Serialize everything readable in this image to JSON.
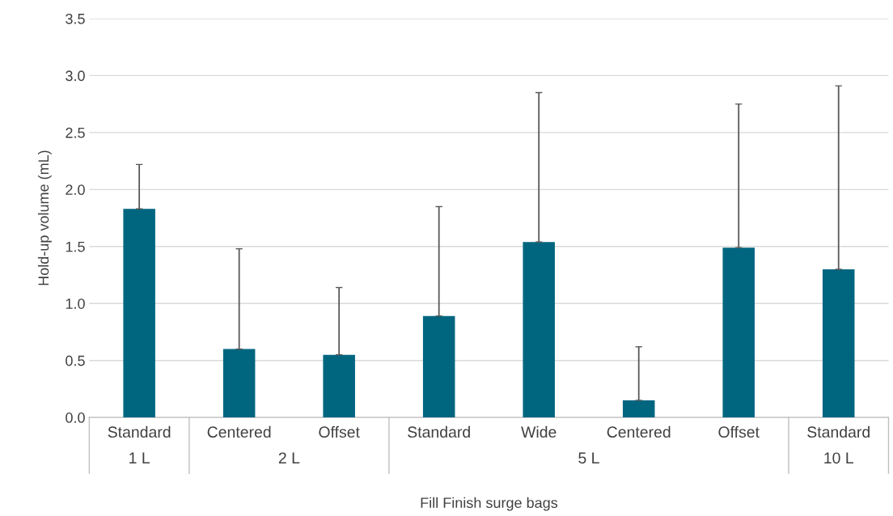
{
  "chart_data": {
    "type": "bar",
    "xlabel": "Fill Finish surge bags",
    "ylabel": "Hold-up volume (mL)",
    "categories": [
      "Standard",
      "Centered",
      "Offset",
      "Standard",
      "Wide",
      "Centered",
      "Offset",
      "Standard"
    ],
    "values": [
      1.83,
      0.6,
      0.55,
      0.89,
      1.54,
      0.15,
      1.49,
      1.3
    ],
    "errors": [
      [
        1.83,
        2.22
      ],
      [
        0.6,
        1.48
      ],
      [
        0.55,
        1.14
      ],
      [
        0.89,
        1.85
      ],
      [
        1.54,
        2.85
      ],
      [
        0.15,
        0.62
      ],
      [
        1.49,
        2.75
      ],
      [
        1.3,
        2.91
      ]
    ],
    "color": "#006680",
    "annotations": [
      "1 L",
      "2 L",
      "5 L",
      "10 L"
    ],
    "ylim": [
      0,
      3.5
    ],
    "yticks": [
      {
        "value": 0,
        "label": "0.0"
      },
      {
        "value": 0.5,
        "label": "0.5"
      },
      {
        "value": 1,
        "label": "1.0"
      },
      {
        "value": 1.5,
        "label": "1.5"
      },
      {
        "value": 2,
        "label": "2.0"
      },
      {
        "value": 2.5,
        "label": "2.5"
      },
      {
        "value": 3,
        "label": "3.0"
      },
      {
        "value": 3.5,
        "label": "3.5"
      }
    ],
    "grid": "y",
    "legend": false
  }
}
